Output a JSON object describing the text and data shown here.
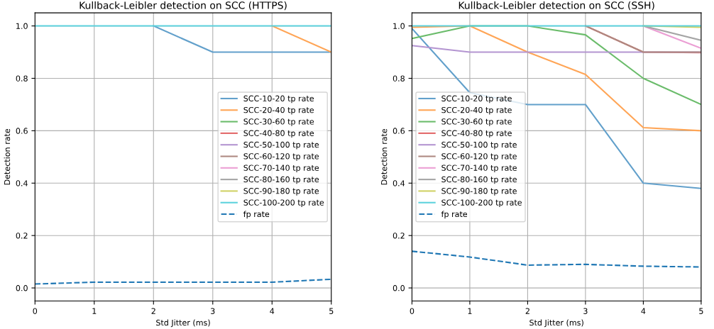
{
  "chart_data": [
    {
      "type": "line",
      "title": "Kullback-Leibler detection on SCC (HTTPS)",
      "xlabel": "Std Jitter (ms)",
      "ylabel": "Detection rate",
      "x": [
        0,
        1,
        2,
        3,
        4,
        5
      ],
      "xlim": [
        0,
        5
      ],
      "ylim": [
        -0.05,
        1.05
      ],
      "xticks": [
        0,
        1,
        2,
        3,
        4,
        5
      ],
      "yticks": [
        {
          "value": 0,
          "label": "0.0"
        },
        {
          "value": 0.2,
          "label": "0.2"
        },
        {
          "value": 0.4,
          "label": "0.4"
        },
        {
          "value": 0.6,
          "label": "0.6"
        },
        {
          "value": 0.8,
          "label": "0.8"
        },
        {
          "value": 1,
          "label": "1.0"
        }
      ],
      "grid": true,
      "legend": "center right",
      "series": [
        {
          "name": "SCC-10-20 tp rate",
          "color": "#62a0cb",
          "values": [
            null,
            null,
            1,
            0.9,
            0.9,
            0.9
          ]
        },
        {
          "name": "SCC-20-40 tp rate",
          "color": "#ffa556",
          "values": [
            null,
            null,
            null,
            null,
            1,
            0.9
          ]
        },
        {
          "name": "SCC-30-60 tp rate",
          "color": "#6bbc6b",
          "values": [
            null,
            null,
            null,
            null,
            null,
            null
          ]
        },
        {
          "name": "SCC-40-80 tp rate",
          "color": "#e26768",
          "values": [
            null,
            null,
            null,
            null,
            null,
            null
          ]
        },
        {
          "name": "SCC-50-100 tp rate",
          "color": "#b495d1",
          "values": [
            null,
            null,
            null,
            null,
            null,
            null
          ]
        },
        {
          "name": "SCC-60-120 tp rate",
          "color": "#ae8981",
          "values": [
            null,
            null,
            null,
            null,
            null,
            null
          ]
        },
        {
          "name": "SCC-70-140 tp rate",
          "color": "#eb9fd4",
          "values": [
            null,
            null,
            null,
            null,
            null,
            null
          ]
        },
        {
          "name": "SCC-80-160 tp rate",
          "color": "#a5a5a5",
          "values": [
            null,
            null,
            null,
            null,
            null,
            null
          ]
        },
        {
          "name": "SCC-90-180 tp rate",
          "color": "#d0d164",
          "values": [
            null,
            null,
            null,
            null,
            null,
            null
          ]
        },
        {
          "name": "SCC-100-200 tp rate",
          "color": "#5dd2dd",
          "values": [
            1,
            1,
            1,
            1,
            1,
            1
          ]
        },
        {
          "name": "fp rate",
          "color": "#1f77b4",
          "line_style": "dashed",
          "values": [
            0.015,
            0.022,
            0.022,
            0.022,
            0.022,
            0.033
          ]
        }
      ]
    },
    {
      "type": "line",
      "title": "Kullback-Leibler detection on SCC (SSH)",
      "xlabel": "Std Jitter (ms)",
      "ylabel": "Detection rate",
      "x": [
        0,
        1,
        2,
        3,
        4,
        5
      ],
      "xlim": [
        0,
        5
      ],
      "ylim": [
        -0.05,
        1.05
      ],
      "xticks": [
        0,
        1,
        2,
        3,
        4,
        5
      ],
      "yticks": [
        {
          "value": 0,
          "label": "0.0"
        },
        {
          "value": 0.2,
          "label": "0.2"
        },
        {
          "value": 0.4,
          "label": "0.4"
        },
        {
          "value": 0.6,
          "label": "0.6"
        },
        {
          "value": 0.8,
          "label": "0.8"
        },
        {
          "value": 1,
          "label": "1.0"
        }
      ],
      "grid": true,
      "legend": "center left",
      "series": [
        {
          "name": "SCC-10-20 tp rate",
          "color": "#62a0cb",
          "values": [
            0.99,
            0.745,
            0.7,
            0.7,
            0.4,
            0.38
          ]
        },
        {
          "name": "SCC-20-40 tp rate",
          "color": "#ffa556",
          "values": [
            0.995,
            1,
            0.9,
            0.815,
            0.612,
            0.6
          ]
        },
        {
          "name": "SCC-30-60 tp rate",
          "color": "#6bbc6b",
          "values": [
            0.952,
            1,
            1,
            0.966,
            0.8,
            0.7
          ]
        },
        {
          "name": "SCC-40-80 tp rate",
          "color": "#e26768",
          "values": [
            null,
            null,
            null,
            1,
            0.9,
            0.898
          ]
        },
        {
          "name": "SCC-50-100 tp rate",
          "color": "#b495d1",
          "values": [
            0.925,
            0.9,
            0.9,
            0.9,
            0.9,
            0.9
          ]
        },
        {
          "name": "SCC-60-120 tp rate",
          "color": "#ae8981",
          "values": [
            null,
            null,
            null,
            1,
            0.9,
            0.9
          ]
        },
        {
          "name": "SCC-70-140 tp rate",
          "color": "#eb9fd4",
          "values": [
            null,
            null,
            null,
            null,
            1,
            0.915
          ]
        },
        {
          "name": "SCC-80-160 tp rate",
          "color": "#a5a5a5",
          "values": [
            null,
            null,
            null,
            null,
            1,
            0.945
          ]
        },
        {
          "name": "SCC-90-180 tp rate",
          "color": "#d0d164",
          "values": [
            null,
            null,
            null,
            null,
            1,
            0.995
          ]
        },
        {
          "name": "SCC-100-200 tp rate",
          "color": "#5dd2dd",
          "values": [
            1,
            1,
            1,
            1,
            1,
            1
          ]
        },
        {
          "name": "fp rate",
          "color": "#1f77b4",
          "line_style": "dashed",
          "values": [
            0.14,
            0.118,
            0.087,
            0.09,
            0.083,
            0.08
          ]
        }
      ]
    }
  ]
}
